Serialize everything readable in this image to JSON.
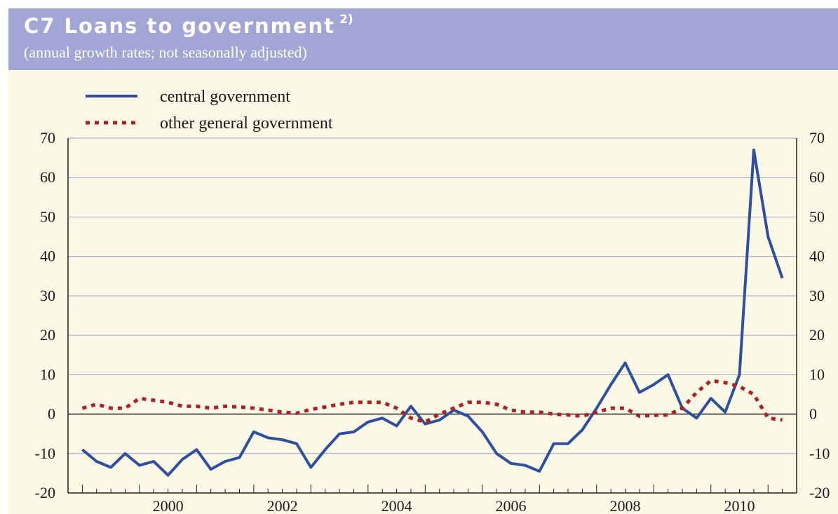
{
  "header": {
    "title": "C7 Loans to government",
    "title_footnote": "2)",
    "subtitle": "(annual growth rates; not seasonally adjusted)",
    "bar_color": "#a2a6d6"
  },
  "chart_data": {
    "type": "line",
    "title": "C7 Loans to government",
    "subtitle": "(annual growth rates; not seasonally adjusted)",
    "xlabel": "",
    "ylabel": "",
    "ylim": [
      -20,
      70
    ],
    "yticks": [
      70,
      60,
      50,
      40,
      30,
      20,
      10,
      0,
      -10,
      -20
    ],
    "ytick_labels": [
      "70",
      "60",
      "50",
      "40",
      "30",
      "20",
      "10",
      "0",
      "-10",
      "-20"
    ],
    "xlim": [
      1998.75,
      2011.5
    ],
    "xticks": [
      2000,
      2002,
      2004,
      2006,
      2008,
      2010
    ],
    "xtick_labels": [
      "2000",
      "2002",
      "2004",
      "2006",
      "2008",
      "2010"
    ],
    "grid": "horizontal",
    "legend_position": "top-left",
    "zero_line": true,
    "series": [
      {
        "name": "central government",
        "style": "solid",
        "color": "#2f4fa0",
        "x": [
          1999.0,
          1999.25,
          1999.5,
          1999.75,
          2000.0,
          2000.25,
          2000.5,
          2000.75,
          2001.0,
          2001.25,
          2001.5,
          2001.75,
          2002.0,
          2002.25,
          2002.5,
          2002.75,
          2003.0,
          2003.25,
          2003.5,
          2003.75,
          2004.0,
          2004.25,
          2004.5,
          2004.75,
          2005.0,
          2005.25,
          2005.5,
          2005.75,
          2006.0,
          2006.25,
          2006.5,
          2006.75,
          2007.0,
          2007.25,
          2007.5,
          2007.75,
          2008.0,
          2008.25,
          2008.5,
          2008.75,
          2009.0,
          2009.25,
          2009.5,
          2009.75,
          2010.0,
          2010.25,
          2010.5,
          2010.75,
          2011.0,
          2011.25
        ],
        "y": [
          -9,
          -12,
          -13.5,
          -10,
          -13,
          -12,
          -15.5,
          -11.5,
          -9,
          -14,
          -12,
          -11,
          -4.5,
          -6,
          -6.5,
          -7.5,
          -13.5,
          -9,
          -5,
          -4.5,
          -2,
          -1,
          -3,
          2,
          -2.5,
          -1.5,
          1,
          -0.5,
          -4.5,
          -10,
          -12.5,
          -13,
          -14.5,
          -7.5,
          -7.5,
          -4,
          1.5,
          7.5,
          13,
          5.5,
          7.5,
          10,
          1.5,
          -1,
          4,
          0.5,
          10,
          67,
          45,
          34.5
        ]
      },
      {
        "name": "other general government",
        "style": "dotted",
        "color": "#b11f24",
        "x": [
          1999.0,
          1999.25,
          1999.5,
          1999.75,
          2000.0,
          2000.25,
          2000.5,
          2000.75,
          2001.0,
          2001.25,
          2001.5,
          2001.75,
          2002.0,
          2002.25,
          2002.5,
          2002.75,
          2003.0,
          2003.25,
          2003.5,
          2003.75,
          2004.0,
          2004.25,
          2004.5,
          2004.75,
          2005.0,
          2005.25,
          2005.5,
          2005.75,
          2006.0,
          2006.25,
          2006.5,
          2006.75,
          2007.0,
          2007.25,
          2007.5,
          2007.75,
          2008.0,
          2008.25,
          2008.5,
          2008.75,
          2009.0,
          2009.25,
          2009.5,
          2009.75,
          2010.0,
          2010.25,
          2010.5,
          2010.75,
          2011.0,
          2011.25
        ],
        "y": [
          1.5,
          2.5,
          1.5,
          1.5,
          4,
          3.5,
          3,
          2,
          2,
          1.5,
          2,
          1.8,
          1.5,
          1,
          0.5,
          0.2,
          1.2,
          1.8,
          2.5,
          3,
          3,
          3,
          1.5,
          -1,
          -2,
          0,
          1.5,
          3,
          3,
          2.5,
          1,
          0.5,
          0.5,
          0,
          -0.2,
          -0.5,
          0.5,
          1.5,
          1.5,
          -0.5,
          -0.3,
          -0.2,
          1.5,
          5.5,
          8.5,
          8,
          7,
          5,
          -1,
          -1.5
        ]
      }
    ]
  }
}
